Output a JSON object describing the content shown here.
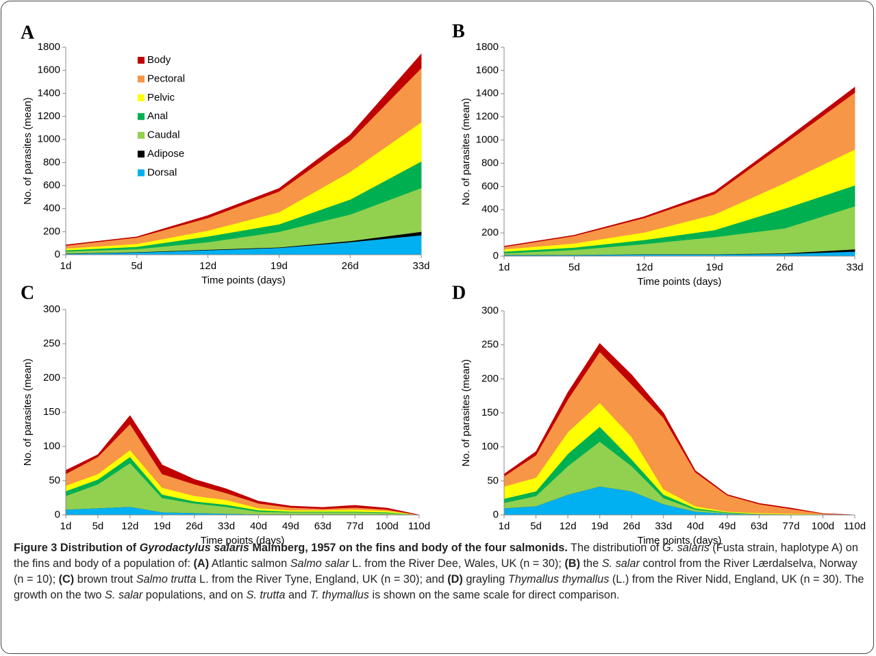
{
  "chart_data": [
    {
      "type": "area",
      "stacked": true,
      "label": "A",
      "x_label": "Time points (days)",
      "y_label": "No. of parasites (mean)",
      "categories": [
        "1d",
        "5d",
        "12d",
        "19d",
        "26d",
        "33d"
      ],
      "ylim": [
        0,
        1800
      ],
      "yticks": [
        0,
        200,
        400,
        600,
        800,
        1000,
        1200,
        1400,
        1600,
        1800
      ],
      "legend": "upper left",
      "series": [
        {
          "name": "Dorsal",
          "color": "#00b0f0",
          "values": [
            10,
            20,
            40,
            60,
            110,
            170
          ]
        },
        {
          "name": "Adipose",
          "color": "#000000",
          "values": [
            2,
            3,
            5,
            5,
            10,
            30
          ]
        },
        {
          "name": "Caudal",
          "color": "#92d050",
          "values": [
            18,
            27,
            65,
            135,
            230,
            380
          ]
        },
        {
          "name": "Anal",
          "color": "#00b050",
          "values": [
            10,
            20,
            50,
            65,
            130,
            230
          ]
        },
        {
          "name": "Pelvic",
          "color": "#ffff00",
          "values": [
            15,
            25,
            50,
            105,
            240,
            340
          ]
        },
        {
          "name": "Pectoral",
          "color": "#f79646",
          "values": [
            25,
            55,
            110,
            180,
            270,
            470
          ]
        },
        {
          "name": "Body",
          "color": "#c00000",
          "values": [
            5,
            5,
            20,
            25,
            50,
            120
          ]
        }
      ]
    },
    {
      "type": "area",
      "stacked": true,
      "label": "B",
      "x_label": "Time points (days)",
      "y_label": "No. of parasites (mean)",
      "categories": [
        "1d",
        "5d",
        "12d",
        "19d",
        "26d",
        "33d"
      ],
      "ylim": [
        0,
        1800
      ],
      "yticks": [
        0,
        200,
        400,
        600,
        800,
        1000,
        1200,
        1400,
        1600,
        1800
      ],
      "series": [
        {
          "color": "#00b0f0",
          "values": [
            10,
            10,
            15,
            15,
            20,
            40
          ]
        },
        {
          "color": "#000000",
          "values": [
            1,
            1,
            2,
            2,
            5,
            20
          ]
        },
        {
          "color": "#92d050",
          "values": [
            14,
            44,
            88,
            148,
            215,
            370
          ]
        },
        {
          "color": "#00b050",
          "values": [
            15,
            20,
            35,
            60,
            170,
            180
          ]
        },
        {
          "color": "#ffff00",
          "values": [
            20,
            35,
            65,
            135,
            220,
            310
          ]
        },
        {
          "color": "#f79646",
          "values": [
            20,
            65,
            125,
            175,
            340,
            490
          ]
        },
        {
          "color": "#c00000",
          "values": [
            5,
            5,
            10,
            20,
            30,
            45
          ]
        }
      ]
    },
    {
      "type": "area",
      "stacked": true,
      "label": "C",
      "x_label": "Time points (days)",
      "y_label": "No. of parasites (mean)",
      "categories": [
        "1d",
        "5d",
        "12d",
        "19d",
        "26d",
        "33d",
        "40d",
        "49d",
        "63d",
        "77d",
        "100d",
        "110d"
      ],
      "ylim": [
        0,
        300
      ],
      "yticks": [
        0,
        50,
        100,
        150,
        200,
        250,
        300
      ],
      "series": [
        {
          "color": "#00b0f0",
          "values": [
            8,
            10,
            12,
            4,
            3,
            2,
            1,
            1,
            1,
            1,
            1,
            0
          ]
        },
        {
          "color": "#000000",
          "values": [
            0,
            0,
            0,
            0,
            0,
            0,
            0,
            0,
            0,
            0,
            0,
            0
          ]
        },
        {
          "color": "#92d050",
          "values": [
            20,
            35,
            64,
            21,
            14,
            10,
            4,
            3,
            3,
            3,
            2,
            0
          ]
        },
        {
          "color": "#00b050",
          "values": [
            7,
            7,
            9,
            5,
            3,
            3,
            2,
            1,
            1,
            1,
            1,
            0
          ]
        },
        {
          "color": "#ffff00",
          "values": [
            8,
            8,
            10,
            10,
            8,
            7,
            3,
            2,
            2,
            3,
            2,
            0
          ]
        },
        {
          "color": "#f79646",
          "values": [
            17,
            25,
            38,
            20,
            17,
            10,
            7,
            4,
            2,
            3,
            2,
            0
          ]
        },
        {
          "color": "#c00000",
          "values": [
            5,
            3,
            12,
            13,
            7,
            6,
            3,
            2,
            2,
            3,
            2,
            0
          ]
        }
      ]
    },
    {
      "type": "area",
      "stacked": true,
      "label": "D",
      "x_label": "Time points (days)",
      "y_label": "No. of parasites (mean)",
      "categories": [
        "1d",
        "5d",
        "12d",
        "19d",
        "26d",
        "33d",
        "40d",
        "49d",
        "63d",
        "77d",
        "100d",
        "110d"
      ],
      "ylim": [
        0,
        300
      ],
      "yticks": [
        0,
        50,
        100,
        150,
        200,
        250,
        300
      ],
      "series": [
        {
          "color": "#00b0f0",
          "values": [
            10,
            13,
            30,
            42,
            35,
            16,
            5,
            2,
            1,
            1,
            0,
            0
          ]
        },
        {
          "color": "#000000",
          "values": [
            0,
            0,
            0,
            0,
            0,
            0,
            0,
            0,
            0,
            0,
            0,
            0
          ]
        },
        {
          "color": "#92d050",
          "values": [
            8,
            15,
            42,
            66,
            37,
            9,
            3,
            1,
            1,
            0,
            1,
            0
          ]
        },
        {
          "color": "#00b050",
          "values": [
            6,
            7,
            18,
            22,
            10,
            5,
            2,
            1,
            0,
            0,
            0,
            0
          ]
        },
        {
          "color": "#ffff00",
          "values": [
            18,
            20,
            32,
            35,
            33,
            8,
            3,
            1,
            1,
            1,
            0,
            0
          ]
        },
        {
          "color": "#f79646",
          "values": [
            15,
            33,
            48,
            75,
            77,
            105,
            50,
            24,
            13,
            7,
            1,
            0
          ]
        },
        {
          "color": "#c00000",
          "values": [
            3,
            5,
            10,
            12,
            14,
            7,
            2,
            1,
            1,
            1,
            0,
            0
          ]
        }
      ]
    }
  ],
  "caption": [
    {
      "text": "Figure 3 Distribution of ",
      "bold": true
    },
    {
      "text": "Gyrodactylus salaris",
      "bold": true,
      "italic": true
    },
    {
      "text": " Malmberg, 1957 on the fins and body of the four salmonids.",
      "bold": true
    },
    {
      "text": " The distribution of "
    },
    {
      "text": "G. salaris",
      "italic": true
    },
    {
      "text": " (Fusta strain, haplotype A) on the fins and body of a population of: "
    },
    {
      "text": "(A)",
      "bold": true
    },
    {
      "text": " Atlantic salmon "
    },
    {
      "text": "Salmo salar",
      "italic": true
    },
    {
      "text": " L. from the River Dee, Wales, UK (n = 30); "
    },
    {
      "text": "(B)",
      "bold": true
    },
    {
      "text": " the "
    },
    {
      "text": "S. salar",
      "italic": true
    },
    {
      "text": " control from the River Lærdalselva, Norway (n = 10); "
    },
    {
      "text": "(C)",
      "bold": true
    },
    {
      "text": " brown trout "
    },
    {
      "text": "Salmo trutta",
      "italic": true
    },
    {
      "text": " L. from the River Tyne, England, UK (n = 30); and "
    },
    {
      "text": "(D)",
      "bold": true
    },
    {
      "text": " grayling "
    },
    {
      "text": "Thymallus thymallus",
      "italic": true
    },
    {
      "text": " (L.) from the River Nidd, England, UK (n = 30). The growth on the two "
    },
    {
      "text": "S. salar",
      "italic": true
    },
    {
      "text": " populations, and on "
    },
    {
      "text": "S. trutta",
      "italic": true
    },
    {
      "text": " and "
    },
    {
      "text": "T. thymallus",
      "italic": true
    },
    {
      "text": " is shown on the same scale for direct comparison."
    }
  ]
}
